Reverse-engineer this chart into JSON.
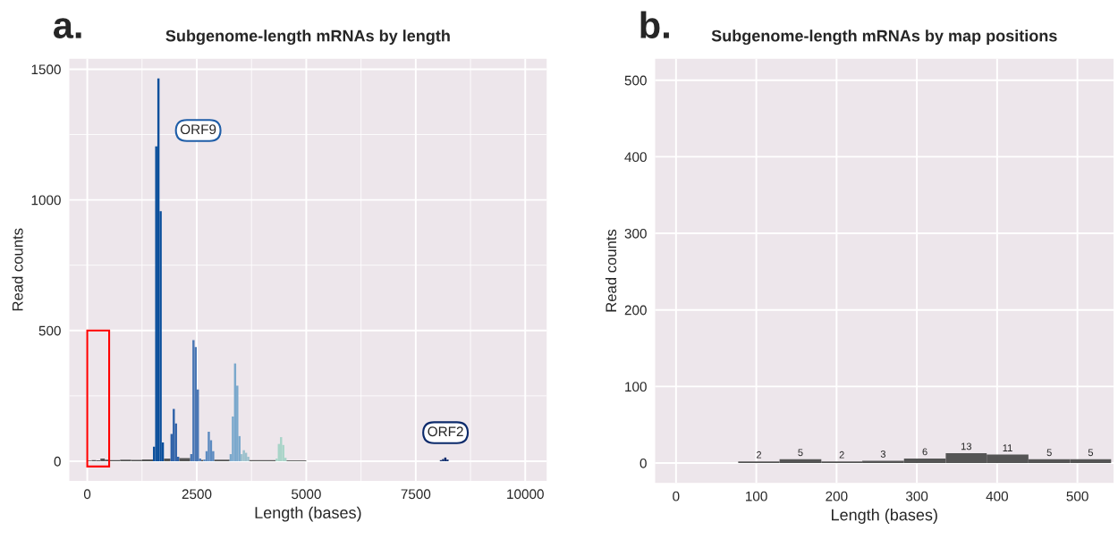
{
  "chart_data": [
    {
      "type": "histogram",
      "title": "Subgenome-length mRNAs by length",
      "xlabel": "Length (bases)",
      "ylabel": "Read counts",
      "bins": [
        0,
        100,
        200,
        300,
        400,
        500,
        750,
        1000,
        1250,
        1500,
        1550,
        1600,
        1650,
        1700,
        1750,
        1900,
        1950,
        2000,
        2050,
        2100,
        2350,
        2400,
        2450,
        2500,
        2550,
        2600,
        2650,
        2700,
        2750,
        2800,
        2850,
        2900,
        3250,
        3300,
        3350,
        3400,
        3450,
        3500,
        3550,
        3600,
        3650,
        3700,
        4300,
        4350,
        4400,
        4450,
        4500,
        4550,
        5000,
        8050,
        8100,
        8150,
        8200,
        8250
      ],
      "values": [
        2,
        4,
        3,
        10,
        6,
        4,
        6,
        5,
        7,
        55,
        1205,
        1465,
        957,
        72,
        10,
        104,
        200,
        144,
        17,
        12,
        27,
        463,
        437,
        274,
        10,
        5,
        7,
        38,
        113,
        80,
        38,
        6,
        27,
        171,
        374,
        289,
        96,
        27,
        42,
        32,
        17,
        4,
        10,
        66,
        92,
        62,
        13,
        3,
        null,
        4,
        8,
        14,
        6
      ],
      "colors": [
        "#555555",
        "#555555",
        "#555555",
        "#555555",
        "#555555",
        "#555555",
        "#555555",
        "#555555",
        "#555555",
        "#0a4f9b",
        "#0a4f9b",
        "#0a4f9b",
        "#0a4f9b",
        "#0a4f9b",
        "#555555",
        "#2f62a8",
        "#2f62a8",
        "#2f62a8",
        "#2f62a8",
        "#555555",
        "#4a77b4",
        "#4a77b4",
        "#4a77b4",
        "#4a77b4",
        "#4a77b4",
        "#555555",
        "#5d8bc0",
        "#5d8bc0",
        "#5d8bc0",
        "#5d8bc0",
        "#5d8bc0",
        "#555555",
        "#7aa8cc",
        "#7aa8cc",
        "#7aa8cc",
        "#7aa8cc",
        "#7aa8cc",
        "#9bc0cc",
        "#9bc0cc",
        "#9bc0cc",
        "#9bc0cc",
        "#555555",
        "#a8d4c8",
        "#a8d4c8",
        "#a8d4c8",
        "#a8d4c8",
        "#a8d4c8",
        "#555555",
        "#555555",
        "#0b2a6b",
        "#0b2a6b",
        "#0b2a6b",
        "#0b2a6b"
      ],
      "xlim": [
        -410,
        10490
      ],
      "ylim": [
        -75,
        1540
      ],
      "xticks": [
        0,
        {
          "value": 1250,
          "label": null
        },
        2500,
        {
          "value": 3750,
          "label": null
        },
        5000,
        {
          "value": 6250,
          "label": null
        },
        7500,
        {
          "value": 8750,
          "label": null
        },
        10000
      ],
      "yticks": [
        0,
        {
          "value": 250,
          "label": null
        },
        500,
        {
          "value": 750,
          "label": null
        },
        1000,
        {
          "value": 1250,
          "label": null
        },
        1500
      ],
      "grid": true,
      "annotations": [
        "a.",
        "ORF9",
        "ORF2"
      ]
    },
    {
      "type": "histogram",
      "title": "Subgenome-length mRNAs by map positions",
      "xlabel": "Length (bases)",
      "ylabel": "Read counts",
      "bins": [
        77.5,
        129,
        181,
        232,
        284,
        336,
        387,
        439,
        491,
        542
      ],
      "values": [
        2,
        5,
        2,
        3,
        6,
        13,
        11,
        5,
        5
      ],
      "color": "#555555",
      "xlim": [
        -26,
        545
      ],
      "ylim": [
        -26,
        528
      ],
      "xticks": [
        0,
        100,
        200,
        300,
        400,
        500
      ],
      "yticks": [
        0,
        100,
        200,
        300,
        400,
        500
      ],
      "grid": true,
      "data_labels": true,
      "annotations": [
        "b."
      ]
    }
  ]
}
